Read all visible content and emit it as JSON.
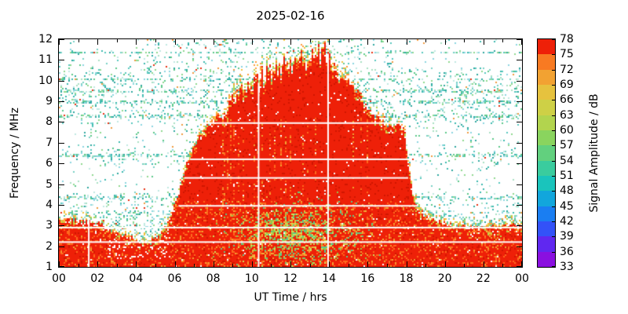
{
  "title": "2025-02-16",
  "axes": {
    "x": {
      "label": "UT Time / hrs",
      "min": 0,
      "max": 24,
      "tick_values": [
        0,
        2,
        4,
        6,
        8,
        10,
        12,
        14,
        16,
        18,
        20,
        22,
        24
      ],
      "tick_labels": [
        "00",
        "02",
        "04",
        "06",
        "08",
        "10",
        "12",
        "14",
        "16",
        "18",
        "20",
        "22",
        "00"
      ],
      "minor_tick_step_hrs": 1
    },
    "y": {
      "label": "Frequency / MHz",
      "min": 1,
      "max": 12,
      "tick_values": [
        1,
        2,
        3,
        4,
        5,
        6,
        7,
        8,
        9,
        10,
        11,
        12
      ]
    }
  },
  "colorbar": {
    "label": "Signal Amplitude / dB",
    "min": 33,
    "max": 78,
    "tick_values": [
      33,
      36,
      39,
      42,
      45,
      48,
      51,
      54,
      57,
      60,
      63,
      66,
      69,
      72,
      75,
      78
    ],
    "band_colors": [
      "#8a10e0",
      "#6028f0",
      "#3352f8",
      "#1a7ef2",
      "#12a6dc",
      "#1ac4bc",
      "#3acc9e",
      "#62d07e",
      "#8ad45e",
      "#b2d44e",
      "#ced046",
      "#e6c23e",
      "#f2a232",
      "#f87a22",
      "#ee2008"
    ]
  },
  "chart_data": {
    "type": "heatmap",
    "title": "2025-02-16",
    "xlabel": "UT Time / hrs",
    "ylabel": "Frequency / MHz",
    "zlabel": "Signal Amplitude / dB",
    "xlim": [
      0,
      24
    ],
    "ylim": [
      1,
      12
    ],
    "zlim": [
      33,
      78
    ],
    "description": "HF spectrogram: strong saturated signal (~75-78 dB, red) fills all frequencies below a diurnal envelope that rises after 06 UT, peaks near 11.5 MHz around 14 UT and collapses after 18 UT; a permanent strong band sits below ~3 MHz all day; elsewhere sparse diffuse teal speckle (~45-55 dB) on a white (<33 dB) background.",
    "strong_color": "#ee2008",
    "strong_signal_envelope": {
      "t_hrs": [
        0,
        1,
        2,
        3,
        4,
        4.7,
        5.2,
        5.7,
        6.2,
        6.7,
        7.2,
        7.7,
        8.2,
        8.7,
        9.2,
        9.7,
        10.2,
        10.7,
        11.2,
        11.7,
        12.2,
        12.7,
        13.2,
        13.7,
        14,
        14.5,
        15,
        15.5,
        16,
        16.5,
        17,
        17.5,
        17.9,
        18.1,
        18.4,
        18.8,
        19.5,
        20.5,
        21.5,
        22.5,
        23.5,
        24
      ],
      "f_max_mhz": [
        3.3,
        3.2,
        3.1,
        2.6,
        2.3,
        2.2,
        2.4,
        3.2,
        4.6,
        6.2,
        7.2,
        7.9,
        8.3,
        8.4,
        9.2,
        9.6,
        9.9,
        10.3,
        10.4,
        10.8,
        10.9,
        11,
        11,
        11.4,
        11.1,
        10.4,
        10,
        9.4,
        8.6,
        8.2,
        7.9,
        7.9,
        7.7,
        6,
        4.2,
        3.6,
        3.2,
        3,
        2.9,
        2.9,
        3,
        3
      ]
    },
    "white_gap_lines": [
      {
        "f_mhz": 7.95,
        "t1": 7.6,
        "t2": 17.7
      },
      {
        "f_mhz": 6.2,
        "t1": 6.8,
        "t2": 18.3
      },
      {
        "f_mhz": 5.3,
        "t1": 6.5,
        "t2": 18.1
      },
      {
        "f_mhz": 3.95,
        "t1": 6.2,
        "t2": 18.6
      },
      {
        "f_mhz": 2.9,
        "t1": 0,
        "t2": 24
      },
      {
        "f_mhz": 2.2,
        "t1": 0,
        "t2": 24
      }
    ],
    "white_gap_columns": [
      {
        "t_hrs": 1.55,
        "f1": 1,
        "f2": 3.4
      },
      {
        "t_hrs": 10.35,
        "f1": 1,
        "f2": 9.9
      },
      {
        "t_hrs": 13.95,
        "f1": 1,
        "f2": 11.3
      }
    ],
    "diffuse_bands": [
      {
        "f": [
          1.8,
          3.7
        ],
        "p": 0.22
      },
      {
        "f": [
          3.8,
          4.6
        ],
        "p": 0.1
      },
      {
        "f": [
          5.9,
          6.6
        ],
        "p": 0.09
      },
      {
        "f": [
          7.9,
          10.6
        ],
        "p": 0.13
      },
      {
        "f": [
          10.8,
          12
        ],
        "p": 0.1
      }
    ],
    "speckle_lines_mhz": [
      4.35,
      6.4,
      8.3,
      8.95,
      9.5,
      10.05,
      11.35
    ],
    "green_patch": {
      "t_center": 12.3,
      "t_sigma": 1.7,
      "f_center": 2.6,
      "f_sigma": 0.75,
      "max_p": 0.65
    }
  }
}
